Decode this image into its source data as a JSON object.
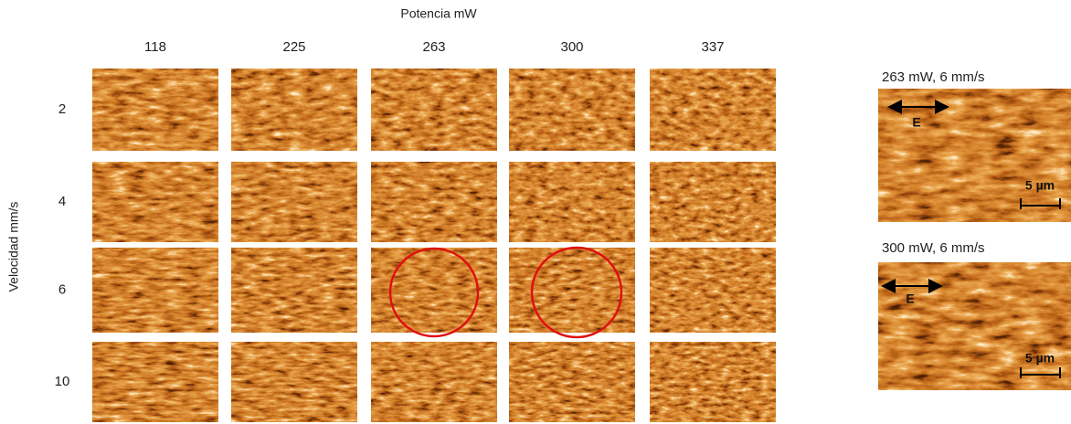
{
  "header": {
    "title": "Potencia mW"
  },
  "columns": [
    "118",
    "225",
    "263",
    "300",
    "337"
  ],
  "rows": [
    "2",
    "4",
    "6",
    "10"
  ],
  "row_axis": "Velocidad mm/s",
  "insets": [
    {
      "title": "263 mW, 6 mm/s",
      "arrow_label": "E",
      "scale_label": "5 µm"
    },
    {
      "title": "300 mW, 6 mm/s",
      "arrow_label": "E",
      "scale_label": "5 µm"
    }
  ]
}
